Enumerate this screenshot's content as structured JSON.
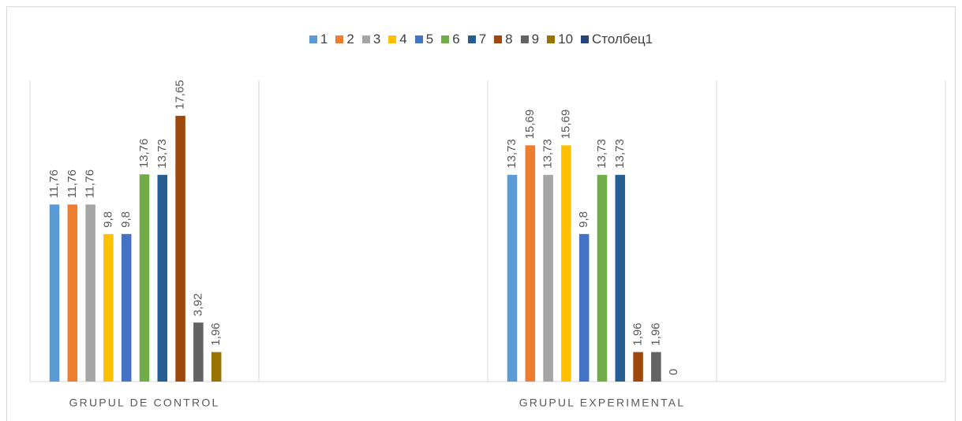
{
  "chart_data": {
    "type": "bar",
    "categories": [
      "GRUPUL DE CONTROL",
      null,
      "GRUPUL EXPERIMENTAL",
      null
    ],
    "ylim": [
      0,
      20
    ],
    "grid": true,
    "legend": "top",
    "series": [
      {
        "name": "1",
        "color": "#5b9bd5",
        "values": [
          11.76,
          null,
          13.73,
          null
        ],
        "value_labels": [
          "11,76",
          null,
          "13,73",
          null
        ]
      },
      {
        "name": "2",
        "color": "#ed7d31",
        "values": [
          11.76,
          null,
          15.69,
          null
        ],
        "value_labels": [
          "11,76",
          null,
          "15,69",
          null
        ]
      },
      {
        "name": "3",
        "color": "#a5a5a5",
        "values": [
          11.76,
          null,
          13.73,
          null
        ],
        "value_labels": [
          "11,76",
          null,
          "13,73",
          null
        ]
      },
      {
        "name": "4",
        "color": "#ffc000",
        "values": [
          9.8,
          null,
          15.69,
          null
        ],
        "value_labels": [
          "9,8",
          null,
          "15,69",
          null
        ]
      },
      {
        "name": "5",
        "color": "#4472c4",
        "values": [
          9.8,
          null,
          9.8,
          null
        ],
        "value_labels": [
          "9,8",
          null,
          "9,8",
          null
        ]
      },
      {
        "name": "6",
        "color": "#70ad47",
        "values": [
          13.76,
          null,
          13.73,
          null
        ],
        "value_labels": [
          "13,76",
          null,
          "13,73",
          null
        ]
      },
      {
        "name": "7",
        "color": "#255e91",
        "values": [
          13.73,
          null,
          13.73,
          null
        ],
        "value_labels": [
          "13,73",
          null,
          "13,73",
          null
        ]
      },
      {
        "name": "8",
        "color": "#9e480e",
        "values": [
          17.65,
          null,
          1.96,
          null
        ],
        "value_labels": [
          "17,65",
          null,
          "1,96",
          null
        ]
      },
      {
        "name": "9",
        "color": "#636363",
        "values": [
          3.92,
          null,
          1.96,
          null
        ],
        "value_labels": [
          "3,92",
          null,
          "1,96",
          null
        ]
      },
      {
        "name": "10",
        "color": "#997300",
        "values": [
          1.96,
          null,
          0,
          null
        ],
        "value_labels": [
          "1,96",
          null,
          "0",
          null
        ]
      },
      {
        "name": "Столбец1",
        "color": "#264478",
        "values": [
          null,
          null,
          null,
          null
        ],
        "value_labels": [
          null,
          null,
          null,
          null
        ]
      }
    ]
  }
}
